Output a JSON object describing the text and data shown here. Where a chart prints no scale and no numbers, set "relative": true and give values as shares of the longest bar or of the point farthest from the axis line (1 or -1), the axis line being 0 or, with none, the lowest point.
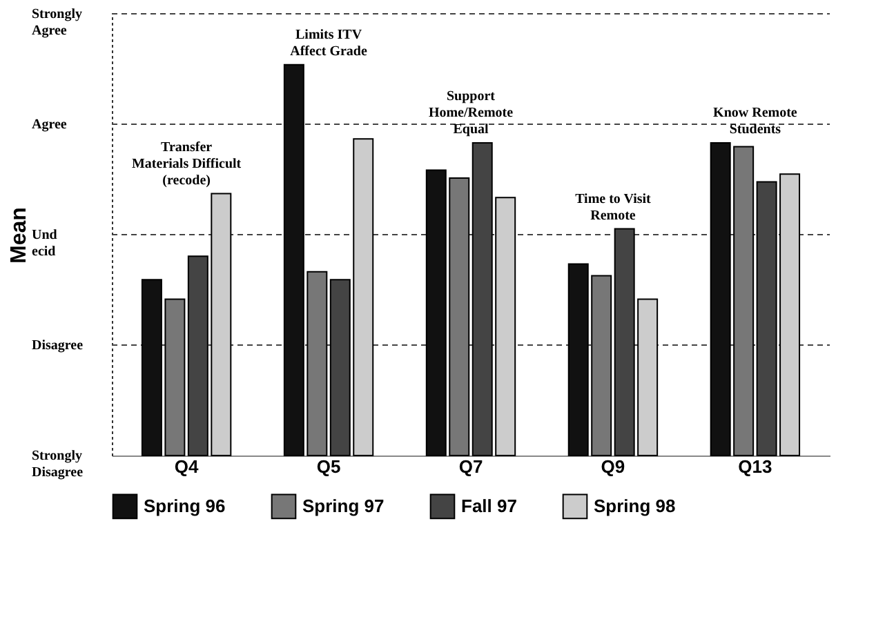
{
  "chart_data": {
    "type": "bar",
    "ylabel": "Mean",
    "relative": true,
    "categories": [
      "Q4",
      "Q5",
      "Q7",
      "Q9",
      "Q13"
    ],
    "series": [
      {
        "name": "Spring 96",
        "color": "#111111",
        "values": [
          0.45,
          1,
          0.73,
          0.49,
          0.8
        ]
      },
      {
        "name": "Spring 97",
        "color": "#777777",
        "values": [
          0.4,
          0.47,
          0.71,
          0.46,
          0.79
        ]
      },
      {
        "name": "Fall 97",
        "color": "#444444",
        "values": [
          0.51,
          0.45,
          0.8,
          0.58,
          0.7
        ]
      },
      {
        "name": "Spring 98",
        "color": "#cccccc",
        "values": [
          0.67,
          0.81,
          0.66,
          0.4,
          0.72
        ]
      }
    ],
    "annotations": [
      "Transfer\nMaterials Difficult\n(recode)",
      "Limits ITV\nAffect Grade",
      "Support\nHome/Remote\nEqual",
      "Time to Visit\nRemote",
      "Know Remote\nStudents",
      "Strongly\nDisagree",
      "Disagree",
      "Und\necid",
      "Agree",
      "Strongly\nAgree"
    ],
    "grid": "y",
    "line_style": "dashed",
    "legend": "bottom"
  }
}
